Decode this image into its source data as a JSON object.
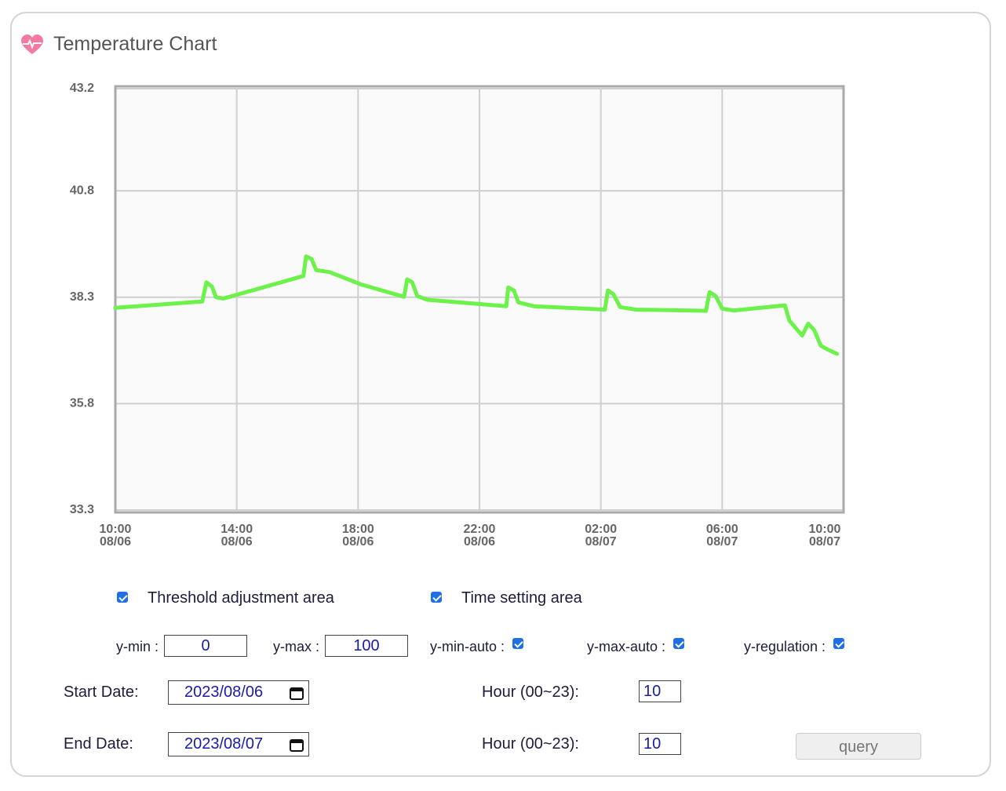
{
  "header": {
    "title": "Temperature Chart"
  },
  "chart_data": {
    "type": "line",
    "x": [
      "08/06 10:00",
      "08/06 12:52",
      "08/06 13:00",
      "08/06 13:11",
      "08/06 13:19",
      "08/06 13:34",
      "08/06 16:12",
      "08/06 16:17",
      "08/06 16:28",
      "08/06 16:37",
      "08/06 17:04",
      "08/06 18:06",
      "08/06 19:31",
      "08/06 19:37",
      "08/06 19:47",
      "08/06 19:57",
      "08/06 20:17",
      "08/06 22:53",
      "08/06 22:57",
      "08/06 23:08",
      "08/06 23:17",
      "08/06 23:47",
      "08/07 02:08",
      "08/07 02:14",
      "08/07 02:25",
      "08/07 02:38",
      "08/07 03:09",
      "08/07 05:28",
      "08/07 05:35",
      "08/07 05:47",
      "08/07 06:00",
      "08/07 06:23",
      "08/07 08:04",
      "08/07 08:13",
      "08/07 08:38",
      "08/07 08:50",
      "08/07 09:02",
      "08/07 09:15",
      "08/07 09:29",
      "08/07 09:47"
    ],
    "series": [
      {
        "color": "#6cf24a",
        "values": [
          38.05,
          38.2,
          38.65,
          38.55,
          38.3,
          38.27,
          38.8,
          39.26,
          39.2,
          38.94,
          38.89,
          38.6,
          38.31,
          38.72,
          38.65,
          38.33,
          38.24,
          38.09,
          38.53,
          38.46,
          38.18,
          38.09,
          38.01,
          38.46,
          38.37,
          38.07,
          38.01,
          37.98,
          38.42,
          38.33,
          38.03,
          37.99,
          38.11,
          37.75,
          37.4,
          37.68,
          37.53,
          37.16,
          37.07,
          36.97
        ]
      }
    ],
    "xlim": [
      "08/06 10:00",
      "08/07 10:00"
    ],
    "xticks": [
      {
        "value": "08/06 10:00",
        "label": "10:00\n08/06"
      },
      {
        "value": "08/06 14:00",
        "label": "14:00\n08/06"
      },
      {
        "value": "08/06 18:00",
        "label": "18:00\n08/06"
      },
      {
        "value": "08/06 22:00",
        "label": "22:00\n08/06"
      },
      {
        "value": "08/07 02:00",
        "label": "02:00\n08/07"
      },
      {
        "value": "08/07 06:00",
        "label": "06:00\n08/07"
      },
      {
        "value": "08/07 10:00",
        "label": "10:00\n08/07"
      }
    ],
    "ylim": [
      33.3,
      43.2
    ],
    "yticks": [
      33.3,
      35.8,
      38.3,
      40.8,
      43.2
    ],
    "grid": true
  },
  "controls": {
    "sections": [
      {
        "label": "Threshold adjustment area",
        "checked": true
      },
      {
        "label": "Time setting area",
        "checked": true
      }
    ],
    "fields": [
      {
        "label": "y-min :",
        "value": "0"
      },
      {
        "label": "y-max :",
        "value": "100"
      }
    ],
    "toggles": [
      {
        "label": "y-min-auto :",
        "checked": true
      },
      {
        "label": "y-max-auto :",
        "checked": true
      },
      {
        "label": "y-regulation :",
        "checked": true
      }
    ],
    "dates": [
      {
        "label": "Start Date:",
        "value": "2023/08/06",
        "hour_label": "Hour (00~23):",
        "hour": "10"
      },
      {
        "label": "End Date:",
        "value": "2023/08/07",
        "hour_label": "Hour (00~23):",
        "hour": "10"
      }
    ],
    "button": "query"
  }
}
